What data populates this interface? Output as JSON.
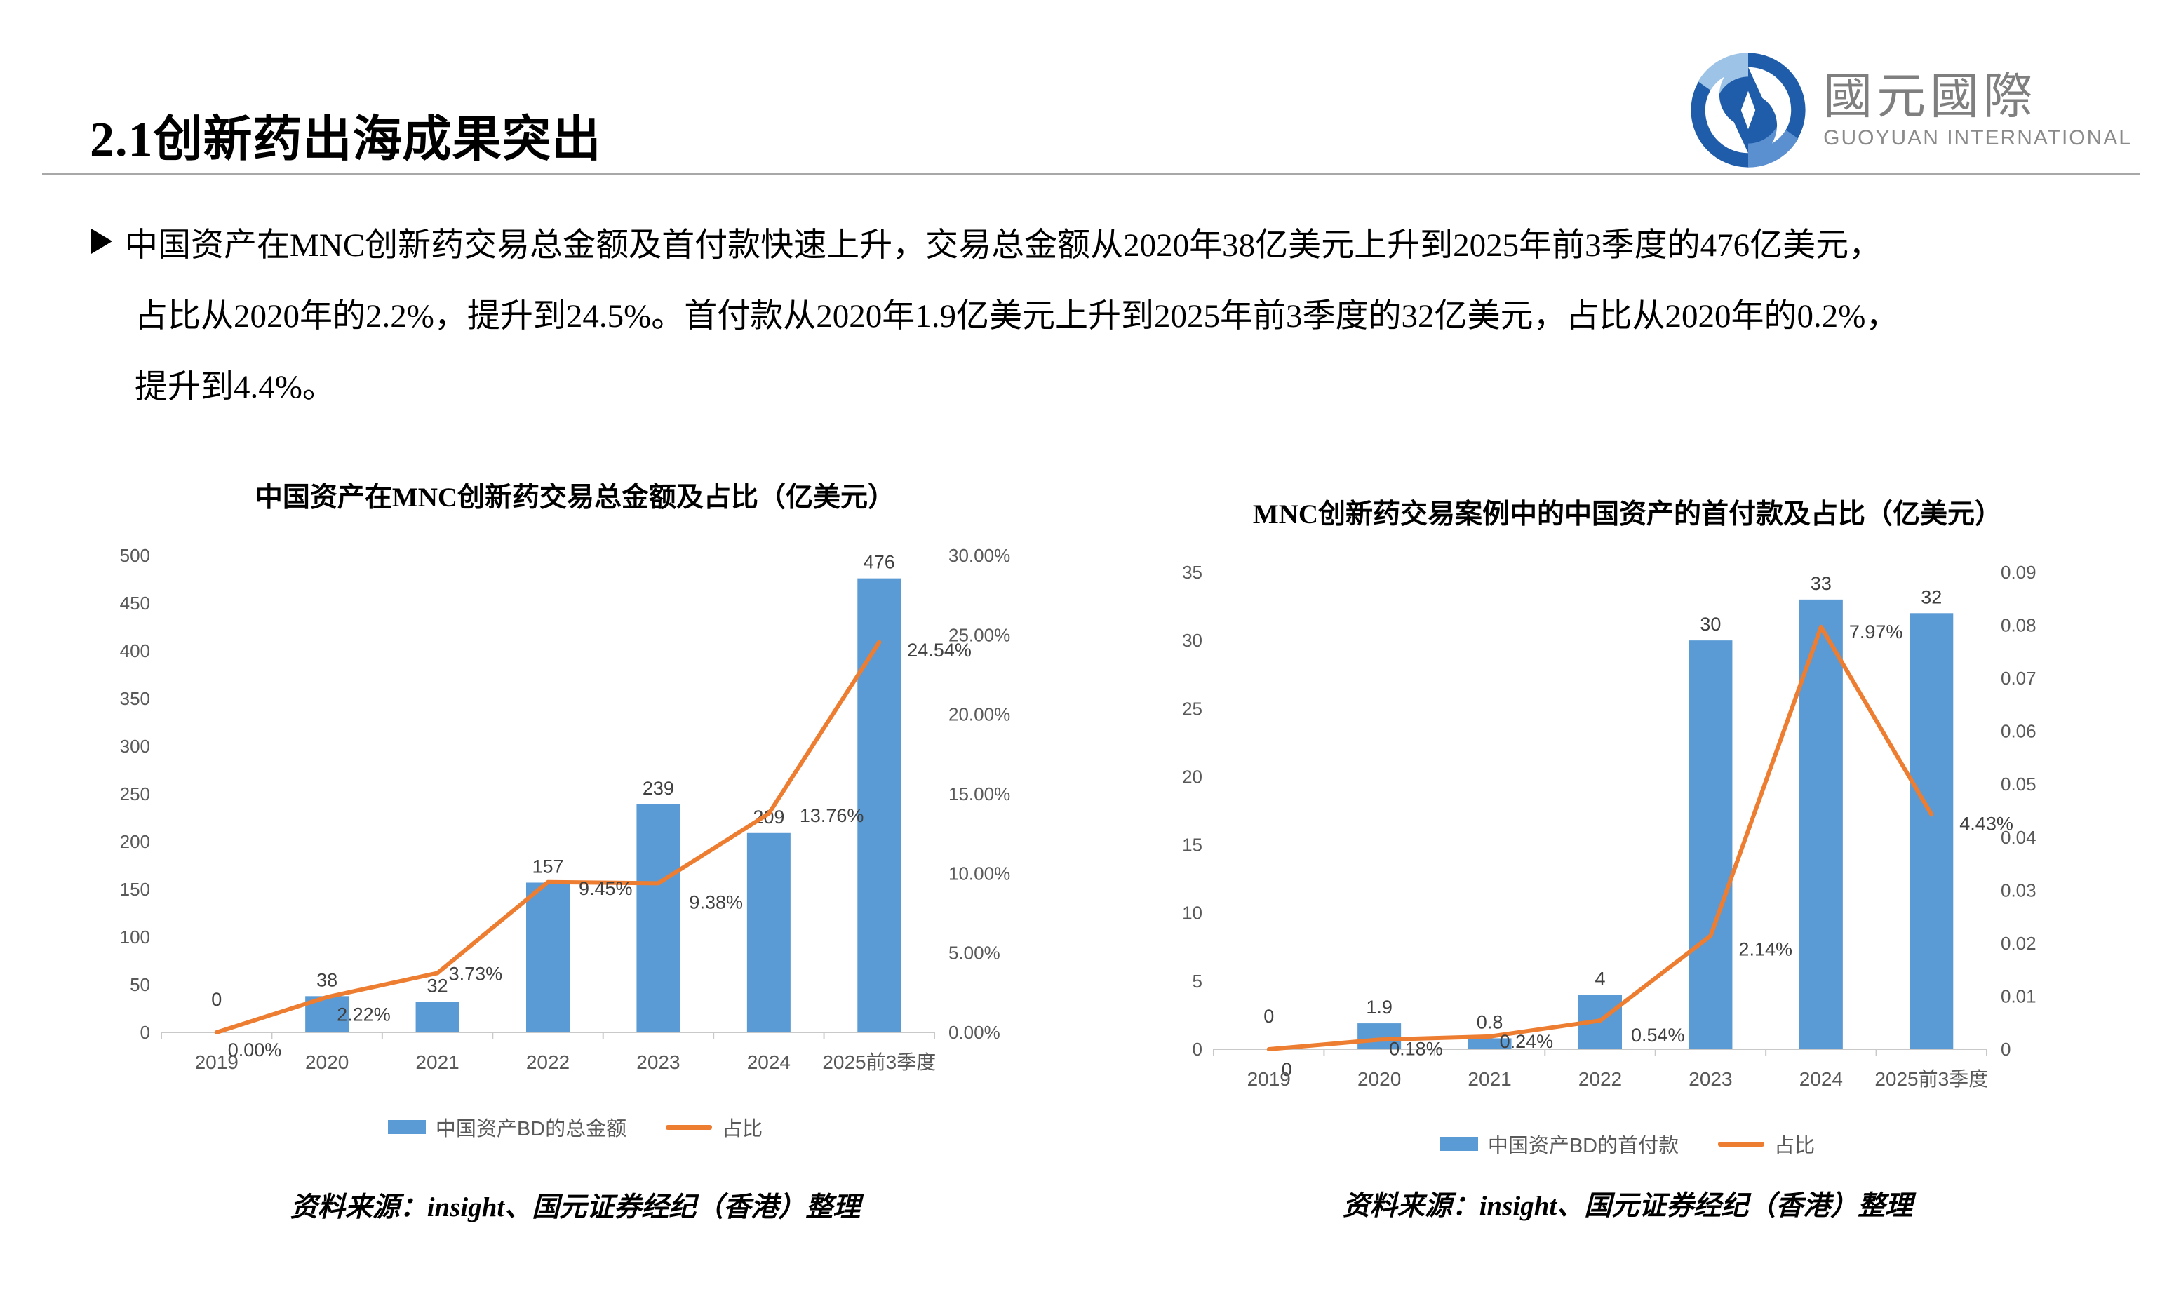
{
  "header": {
    "title": "2.1创新药出海成果突出",
    "logo": {
      "zh": "國元國際",
      "en": "GUOYUAN INTERNATIONAL",
      "blue": "#1f5ca9",
      "light_blue": "#9dc3e6"
    }
  },
  "bullet": {
    "lines": [
      "中国资产在MNC创新药交易总金额及首付款快速上升，交易总金额从2020年38亿美元上升到2025年前3季度的476亿美元，",
      "占比从2020年的2.2%，提升到24.5%。首付款从2020年1.9亿美元上升到2025年前3季度的32亿美元，占比从2020年的0.2%，",
      "提升到4.4%。"
    ]
  },
  "colors": {
    "bar": "#5B9BD5",
    "line": "#ED7D31",
    "axis_text": "#595959",
    "data_label": "#404040",
    "axis_line": "#c9c9c9"
  },
  "charts": [
    {
      "title": "中国资产在MNC创新药交易总金额及占比（亿美元）",
      "legend": [
        {
          "label": "中国资产BD的总金额",
          "type": "bar"
        },
        {
          "label": "占比",
          "type": "line"
        }
      ],
      "source": "资料来源：insight、国元证券经纪（香港）整理",
      "chart_data": {
        "type": "bar",
        "categories": [
          "2019",
          "2020",
          "2021",
          "2022",
          "2023",
          "2024",
          "2025前3季度"
        ],
        "series": [
          {
            "name": "中国资产BD的总金额",
            "type": "bar",
            "axis": "left",
            "values": [
              0,
              38,
              32,
              157,
              239,
              209,
              476
            ],
            "labels": [
              "0",
              "38",
              "32",
              "157",
              "239",
              "209",
              "476"
            ]
          },
          {
            "name": "占比",
            "type": "line",
            "axis": "right",
            "values": [
              0,
              2.22,
              3.73,
              9.45,
              9.38,
              13.76,
              24.54
            ],
            "labels": [
              "0.00%",
              "2.22%",
              "3.73%",
              "9.45%",
              "9.38%",
              "13.76%",
              "24.54%"
            ],
            "label_offsets": [
              [
                16,
                26
              ],
              [
                14,
                26
              ],
              [
                16,
                2
              ],
              [
                44,
                10
              ],
              [
                44,
                28
              ],
              [
                44,
                4
              ],
              [
                40,
                12
              ]
            ]
          }
        ],
        "left_axis": {
          "min": 0,
          "max": 500,
          "ticks": [
            "0",
            "50",
            "100",
            "150",
            "200",
            "250",
            "300",
            "350",
            "400",
            "450",
            "500"
          ]
        },
        "right_axis": {
          "min": 0,
          "max": 30,
          "ticks": [
            "0.00%",
            "5.00%",
            "10.00%",
            "15.00%",
            "20.00%",
            "25.00%",
            "30.00%"
          ]
        },
        "grid": false,
        "legend_position": "bottom"
      }
    },
    {
      "title": "MNC创新药交易案例中的中国资产的首付款及占比（亿美元）",
      "legend": [
        {
          "label": "中国资产BD的首付款",
          "type": "bar"
        },
        {
          "label": "占比",
          "type": "line"
        }
      ],
      "source": "资料来源：insight、国元证券经纪（香港）整理",
      "chart_data": {
        "type": "bar",
        "categories": [
          "2019",
          "2020",
          "2021",
          "2022",
          "2023",
          "2024",
          "2025前3季度"
        ],
        "series": [
          {
            "name": "中国资产BD的首付款",
            "type": "bar",
            "axis": "left",
            "values": [
              0,
              1.9,
              0.8,
              4,
              30,
              33,
              32
            ],
            "labels": [
              "0",
              "1.9",
              "0.8",
              "4",
              "30",
              "33",
              "32"
            ]
          },
          {
            "name": "占比",
            "type": "line",
            "axis": "right",
            "values": [
              0,
              0.18,
              0.24,
              0.54,
              2.14,
              7.97,
              4.43
            ],
            "labels": [
              "0",
              "0.18%",
              "0.24%",
              "0.54%",
              "2.14%",
              "7.97%",
              "4.43%"
            ],
            "label_offsets": [
              [
                18,
                30
              ],
              [
                14,
                14
              ],
              [
                14,
                8
              ],
              [
                44,
                22
              ],
              [
                40,
                20
              ],
              [
                40,
                8
              ],
              [
                40,
                14
              ]
            ]
          }
        ],
        "left_axis": {
          "min": 0,
          "max": 35,
          "ticks": [
            "0",
            "5",
            "10",
            "15",
            "20",
            "25",
            "30",
            "35"
          ]
        },
        "right_axis": {
          "min": 0,
          "max": 9,
          "ticks": [
            "0",
            "0.01",
            "0.02",
            "0.03",
            "0.04",
            "0.05",
            "0.06",
            "0.07",
            "0.08",
            "0.09"
          ]
        },
        "grid": false,
        "legend_position": "bottom"
      }
    }
  ]
}
